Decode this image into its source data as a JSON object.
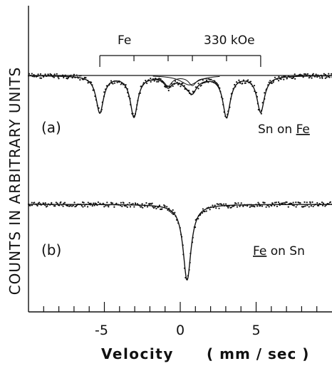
{
  "chart_data": {
    "type": "line",
    "xlabel": "Velocity",
    "xlabel_unit": "( mm / sec )",
    "ylabel": "COUNTS IN ARBITRARY UNITS",
    "xlim": [
      -10,
      10
    ],
    "x_ticks": [
      -5,
      0,
      5
    ],
    "x_tick_labels": [
      "-5",
      "0",
      "5"
    ],
    "grid": false,
    "field_bar": {
      "label": "Fe",
      "field_label": "330 kOe",
      "lines": [
        -5.3,
        -3.05,
        -0.8,
        0.8,
        3.05,
        5.3
      ]
    },
    "panels": [
      {
        "label": "(a)",
        "sample_label": "Sn on Fe",
        "sample_prefix": "Sn on ",
        "sample_underlined": "Fe",
        "baseline": 1.0,
        "sextet": {
          "positions": [
            -5.3,
            -3.05,
            -0.8,
            0.8,
            3.05,
            5.3
          ],
          "depths": [
            0.47,
            0.52,
            0.12,
            0.11,
            0.52,
            0.46
          ],
          "width": 0.3
        },
        "extra_component": {
          "center": 0.6,
          "depth": 0.12,
          "width": 0.7
        }
      },
      {
        "label": "(b)",
        "sample_label": "Fe on Sn",
        "sample_underlined": "Fe",
        "sample_suffix": " on Sn",
        "baseline": 1.0,
        "singlet": {
          "center": 0.45,
          "depth": 0.56,
          "width": 0.32
        }
      }
    ]
  }
}
